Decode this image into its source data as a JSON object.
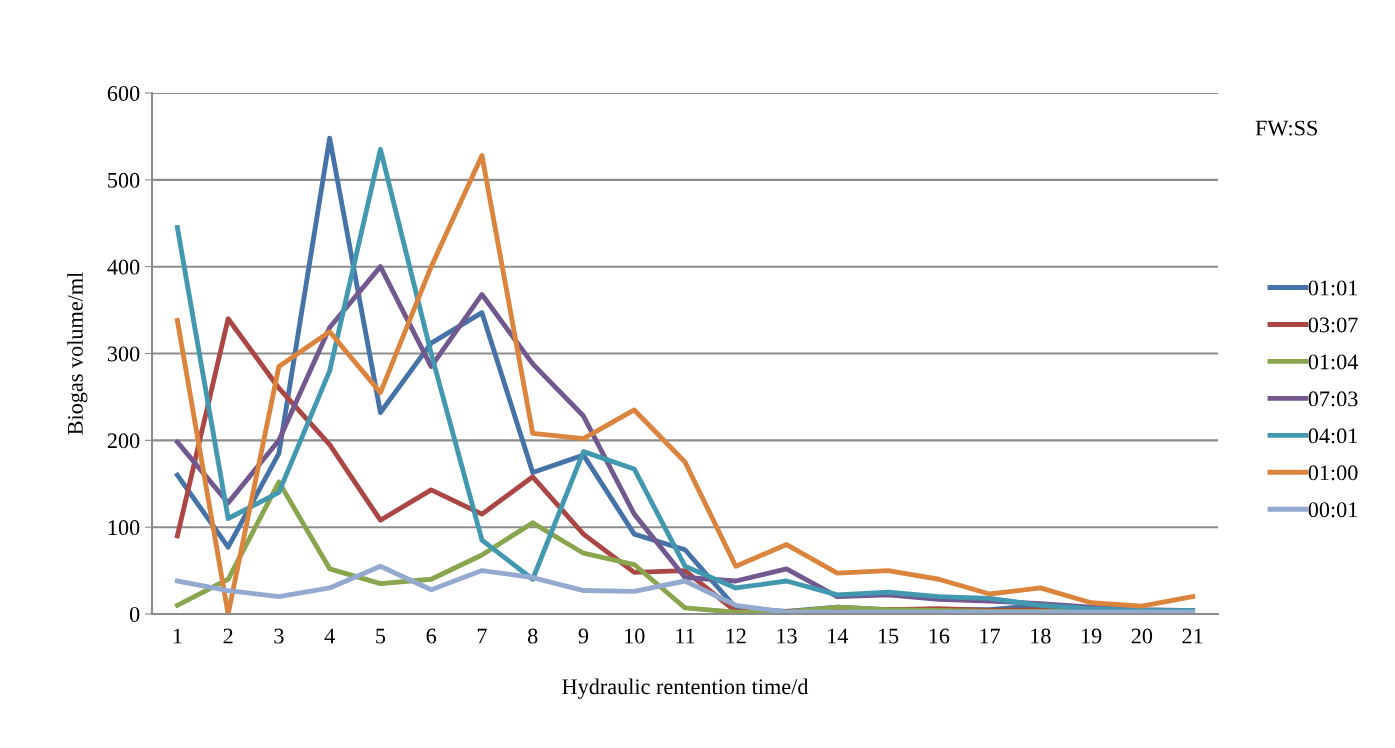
{
  "chart_data": {
    "type": "line",
    "xlabel": "Hydraulic rentention time/d",
    "ylabel": "Biogas volume/ml",
    "legend_title": "FW:SS",
    "categories": [
      "1",
      "2",
      "3",
      "4",
      "5",
      "6",
      "7",
      "8",
      "9",
      "10",
      "11",
      "12",
      "13",
      "14",
      "15",
      "16",
      "17",
      "18",
      "19",
      "20",
      "21"
    ],
    "ylim": [
      0,
      600
    ],
    "yticks": [
      0,
      100,
      200,
      300,
      400,
      500,
      600
    ],
    "grid": "y",
    "legend": "right",
    "marker": "none",
    "line_style": "solid",
    "series": [
      {
        "name": "01:01",
        "color": "#4572a7",
        "values": [
          160,
          77,
          185,
          548,
          232,
          312,
          347,
          163,
          183,
          92,
          74,
          7,
          3,
          8,
          5,
          5,
          5,
          10,
          6,
          4,
          3
        ]
      },
      {
        "name": "03:07",
        "color": "#aa4643",
        "values": [
          90,
          340,
          260,
          195,
          108,
          143,
          115,
          158,
          92,
          48,
          50,
          3,
          3,
          5,
          5,
          6,
          4,
          5,
          4,
          3,
          3
        ]
      },
      {
        "name": "01:04",
        "color": "#89a54e",
        "values": [
          10,
          40,
          152,
          52,
          35,
          40,
          68,
          105,
          70,
          57,
          7,
          2,
          2,
          8,
          5,
          4,
          3,
          3,
          3,
          2,
          2
        ]
      },
      {
        "name": "07:03",
        "color": "#71588f",
        "values": [
          198,
          128,
          200,
          330,
          400,
          285,
          368,
          288,
          228,
          115,
          42,
          38,
          52,
          20,
          22,
          17,
          15,
          12,
          8,
          5,
          4
        ]
      },
      {
        "name": "04:01",
        "color": "#4198af",
        "values": [
          445,
          110,
          140,
          280,
          535,
          300,
          85,
          40,
          187,
          167,
          55,
          30,
          38,
          22,
          25,
          20,
          18,
          10,
          6,
          4,
          4
        ]
      },
      {
        "name": "01:00",
        "color": "#db843d",
        "values": [
          338,
          0,
          285,
          325,
          255,
          400,
          528,
          208,
          202,
          235,
          175,
          55,
          80,
          47,
          50,
          40,
          23,
          30,
          13,
          9,
          20
        ]
      },
      {
        "name": "00:01",
        "color": "#93a9cf",
        "values": [
          38,
          27,
          20,
          30,
          55,
          28,
          50,
          42,
          27,
          26,
          38,
          10,
          2,
          2,
          2,
          2,
          2,
          2,
          2,
          2,
          2
        ]
      }
    ]
  }
}
